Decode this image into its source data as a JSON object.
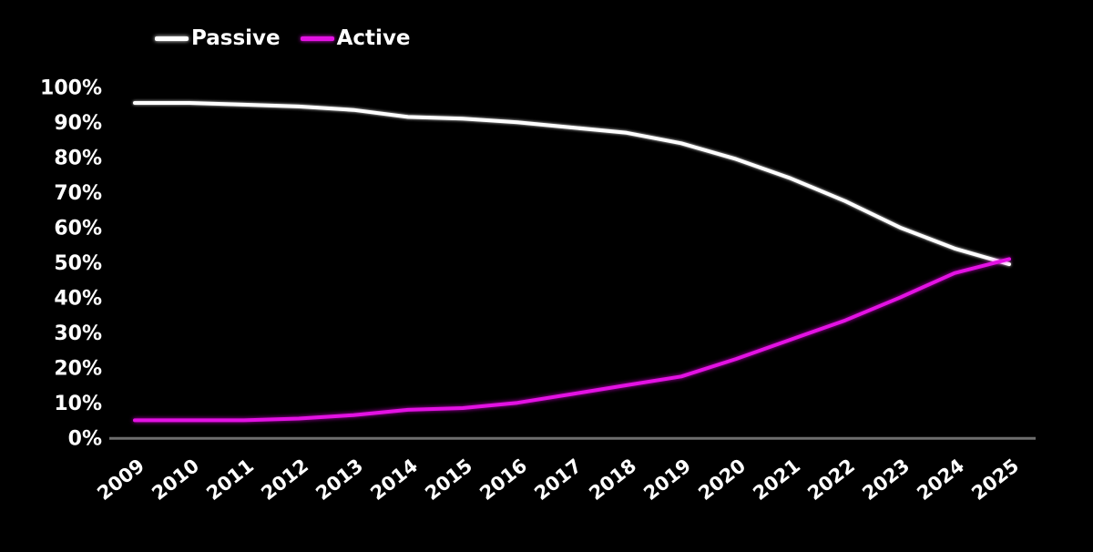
{
  "canvas": {
    "background": "#000000"
  },
  "legend": {
    "position": "top-left",
    "items": [
      {
        "label": "Passive",
        "color": "#FFFFFF"
      },
      {
        "label": "Active",
        "color": "#E312E3"
      }
    ]
  },
  "chart_data": {
    "type": "line",
    "title": "",
    "xlabel": "",
    "ylabel": "",
    "x_labels": [
      "2009",
      "2010",
      "2011",
      "2012",
      "2013",
      "2014",
      "2015",
      "2016",
      "2017",
      "2018",
      "2019",
      "2020",
      "2021",
      "2022",
      "2023",
      "2024",
      "2025"
    ],
    "y_tick_labels": [
      "0%",
      "10%",
      "20%",
      "30%",
      "40%",
      "50%",
      "60%",
      "70%",
      "80%",
      "90%",
      "100%"
    ],
    "y_tick_values": [
      0,
      10,
      20,
      30,
      40,
      50,
      60,
      70,
      80,
      90,
      100
    ],
    "ylim": [
      0,
      100
    ],
    "grid": false,
    "legend_position": "top-left",
    "background_color": "#000000",
    "axis_line_color": "#6E6E6E",
    "tick_label_color": "#FFFFFF",
    "series": [
      {
        "name": "Passive",
        "color": "#FFFFFF",
        "values": [
          95.5,
          95.5,
          95,
          94.5,
          93.5,
          91.5,
          91,
          90,
          88.5,
          87,
          84,
          79.5,
          74,
          67.5,
          60,
          54,
          49.5
        ]
      },
      {
        "name": "Active",
        "color": "#E312E3",
        "values": [
          5,
          5,
          5,
          5.5,
          6.5,
          8,
          8.5,
          10,
          12.5,
          15,
          17.5,
          22.5,
          28,
          33.5,
          40,
          47,
          51
        ]
      }
    ]
  }
}
